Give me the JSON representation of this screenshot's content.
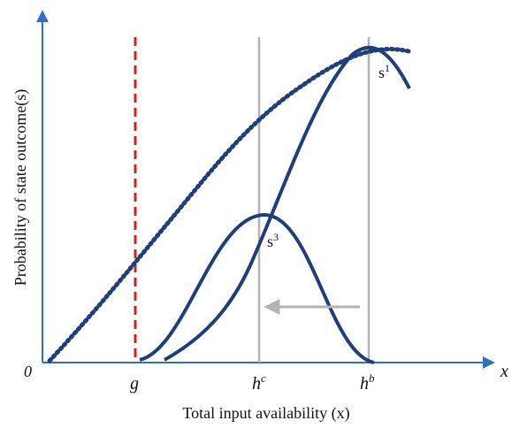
{
  "diagram": {
    "y_axis_label": "Probability of state outcome(s)",
    "x_axis_label": "Total input availability (x)",
    "origin_label": "0",
    "x_axis_end_label": "x",
    "ticks": {
      "g": "g",
      "hc": {
        "base": "h",
        "sup": "c"
      },
      "hb": {
        "base": "h",
        "sup": "b"
      }
    },
    "curve_labels": {
      "s1": {
        "base": "s",
        "sup": "1"
      },
      "s3": {
        "base": "s",
        "sup": "3"
      }
    },
    "colors": {
      "axis": "#2f6fc4",
      "curve": "#1f3e7a",
      "threshold_line": "#d1202a",
      "guide_line": "#b3b3b3",
      "arrow": "#b3b3b3"
    }
  }
}
